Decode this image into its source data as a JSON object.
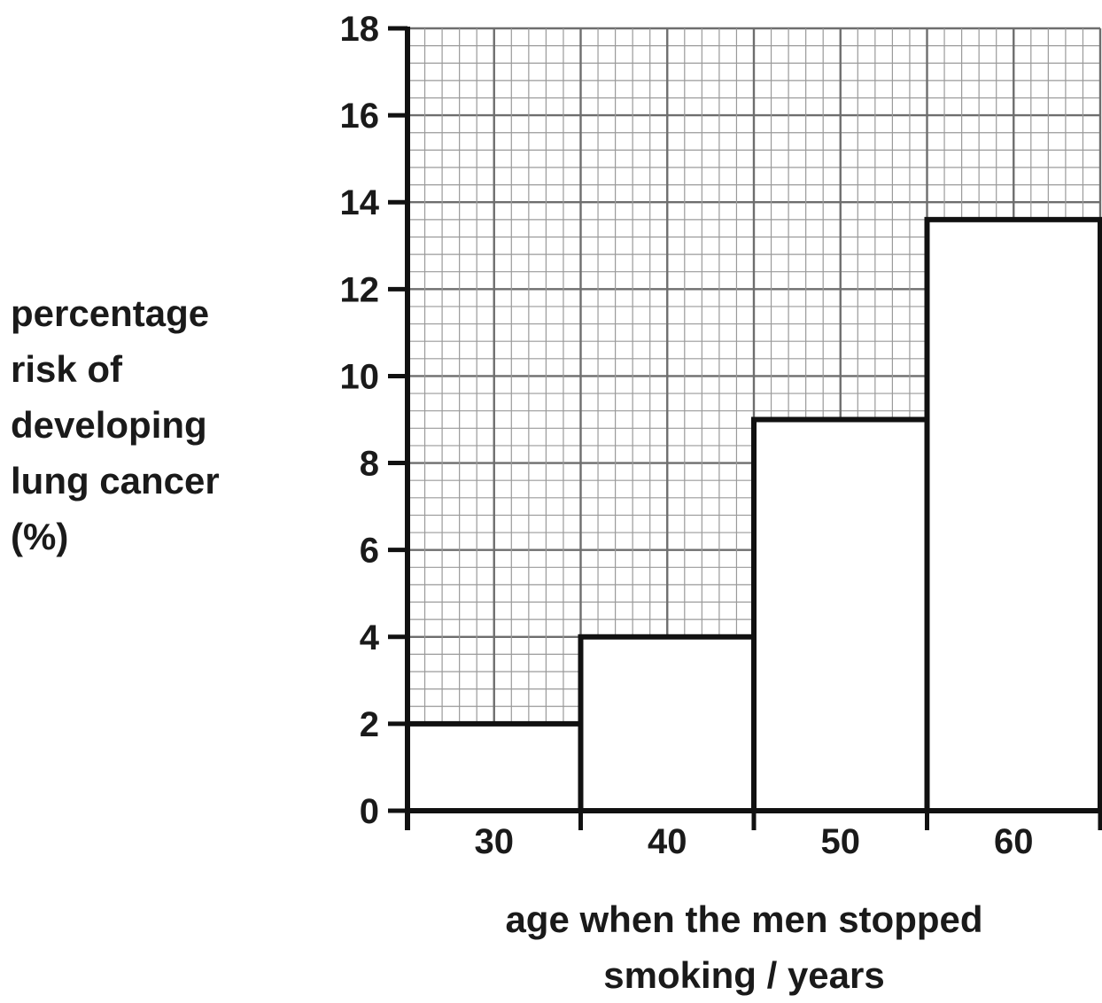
{
  "chart_data": {
    "type": "bar",
    "categories": [
      "30",
      "40",
      "50",
      "60"
    ],
    "values": [
      2,
      4,
      9,
      13.6
    ],
    "title": "",
    "xlabel_lines": [
      "age when the men stopped",
      "smoking / years"
    ],
    "ylabel_lines": [
      "percentage",
      "risk of",
      "developing",
      "lung cancer",
      "(%)"
    ],
    "ylim": [
      0,
      18
    ],
    "yticks": [
      0,
      2,
      4,
      6,
      8,
      10,
      12,
      14,
      16,
      18
    ],
    "grid": true,
    "grid_minor_step": 0.4,
    "grid_major_step": 2,
    "legend": "none",
    "colors": {
      "bar_fill": "#ffffff",
      "bar_stroke": "#111111",
      "grid_minor": "#9a9a9a",
      "grid_major": "#6e6e6e",
      "axis": "#111111",
      "text": "#1a1a1a"
    }
  }
}
